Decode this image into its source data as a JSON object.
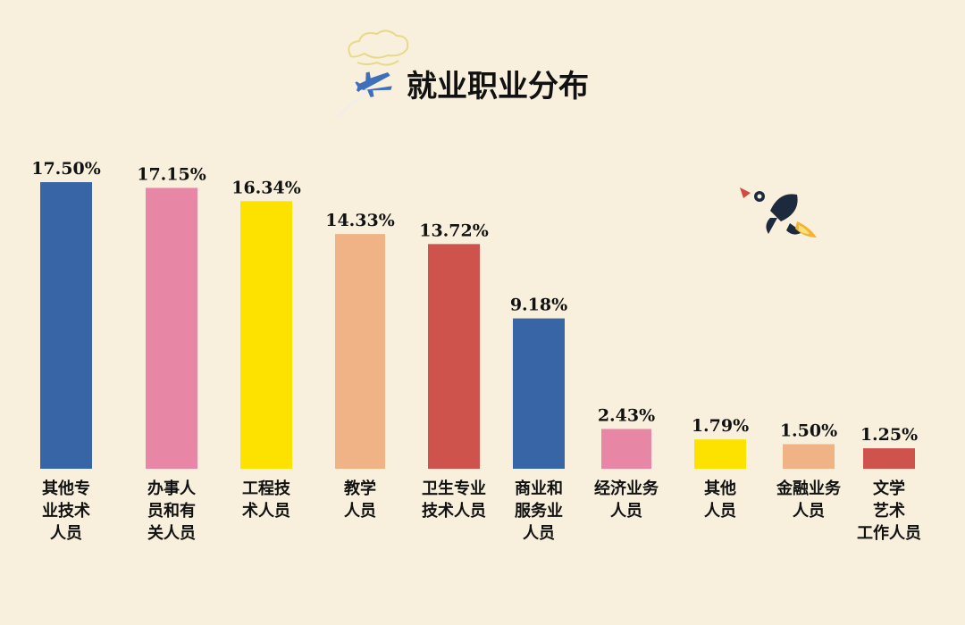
{
  "chart_data": {
    "type": "bar",
    "title": "就业职业分布",
    "categories": [
      [
        "其他专",
        "业技术",
        "人员"
      ],
      [
        "办事人",
        "员和有",
        "关人员"
      ],
      [
        "工程技",
        "术人员"
      ],
      [
        "教学",
        "人员"
      ],
      [
        "卫生专业",
        "技术人员"
      ],
      [
        "商业和",
        "服务业",
        "人员"
      ],
      [
        "经济业务",
        "人员"
      ],
      [
        "其他",
        "人员"
      ],
      [
        "金融业务",
        "人员"
      ],
      [
        "文学",
        "艺术",
        "工作人员"
      ]
    ],
    "values": [
      17.5,
      17.15,
      16.34,
      14.33,
      13.72,
      9.18,
      2.43,
      1.79,
      1.5,
      1.25
    ],
    "value_labels": [
      "17.50%",
      "17.15%",
      "16.34%",
      "14.33%",
      "13.72%",
      "9.18%",
      "2.43%",
      "1.79%",
      "1.50%",
      "1.25%"
    ],
    "colors": [
      "#3865a5",
      "#e886a5",
      "#fde200",
      "#f0b386",
      "#cf534d",
      "#3865a5",
      "#e886a5",
      "#fde200",
      "#f0b386",
      "#cf534d"
    ],
    "ylim": [
      0,
      17.5
    ],
    "xlabel": "",
    "ylabel": "",
    "grid": false,
    "legend": "none"
  },
  "decorations": {
    "icons": [
      "cloud-icon",
      "airplane-icon",
      "rocket-icon"
    ]
  }
}
